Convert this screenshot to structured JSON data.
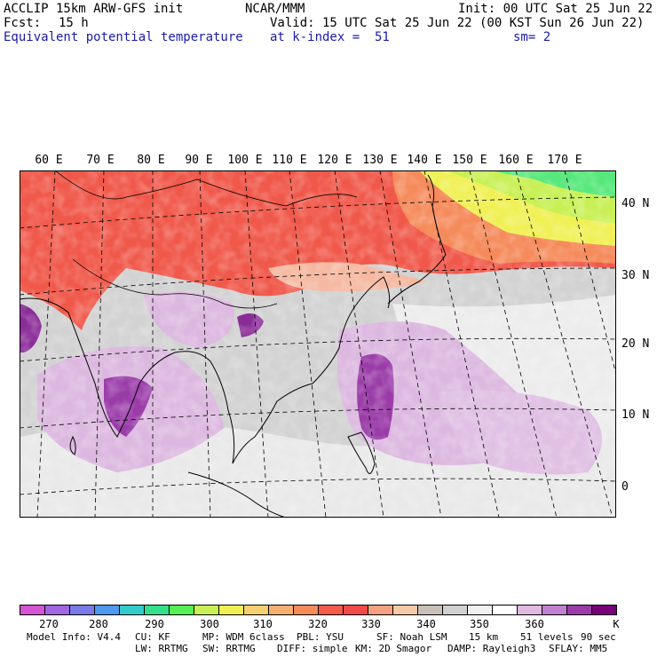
{
  "header": {
    "model": "ACCLIP 15km ARW-GFS init",
    "org": "NCAR/MMM",
    "init": "Init: 00 UTC Sat 25 Jun 22",
    "fcst_label": "Fcst:",
    "fcst_value": "15 h",
    "valid": "Valid: 15 UTC Sat 25 Jun 22 (00 KST Sun 26 Jun 22)",
    "field": "Equivalent potential temperature",
    "level": "at k-index =  51",
    "smooth": "sm= 2"
  },
  "map": {
    "lon_labels": [
      "60 E",
      "70 E",
      "80 E",
      "90 E",
      "100 E",
      "110 E",
      "120 E",
      "130 E",
      "140 E",
      "150 E",
      "160 E",
      "170 E"
    ],
    "lat_labels": [
      "40 N",
      "30 N",
      "20 N",
      "10 N",
      "0"
    ]
  },
  "colorbar": {
    "unit": "K",
    "tick_labels": [
      "270",
      "280",
      "290",
      "300",
      "310",
      "320",
      "330",
      "340",
      "350",
      "360"
    ],
    "colors": [
      "#d455d4",
      "#a066e0",
      "#7a7ae8",
      "#4f9af0",
      "#33cccc",
      "#33e08a",
      "#55f055",
      "#c8f055",
      "#f0f055",
      "#f5d070",
      "#f5b070",
      "#f58a5a",
      "#f55a4a",
      "#f04a4a",
      "#f5a080",
      "#f5c8a8",
      "#c8c0b8",
      "#d0d0d0",
      "#f0f0f0",
      "#ffffff",
      "#e0b8e0",
      "#c080d0",
      "#9a3ca8",
      "#780078"
    ]
  },
  "footer": {
    "row1": [
      "Model Info: V4.4",
      "CU: KF",
      "MP: WDM 6class",
      "PBL: YSU",
      "SF: Noah LSM",
      "15 km",
      "51 levels",
      "90 sec"
    ],
    "row2": [
      "LW: RRTMG",
      "SW: RRTMG",
      "DIFF: simple",
      "KM: 2D Smagor",
      "DAMP: Rayleigh3",
      "SFLAY: MM5"
    ]
  }
}
